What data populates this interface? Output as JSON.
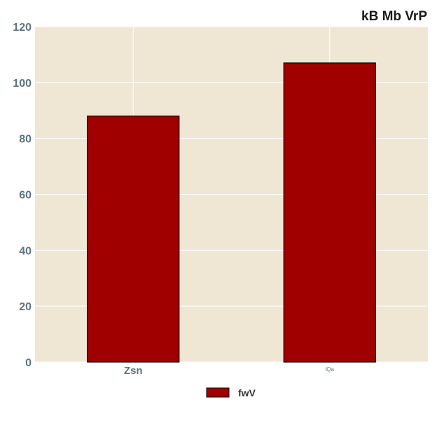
{
  "chart_data": {
    "type": "bar",
    "title": "kB Mb VrP",
    "categories": [
      "Zsn",
      "lQa"
    ],
    "series": [
      {
        "name": "fwV",
        "values": [
          88,
          107
        ]
      }
    ],
    "xlabel": "",
    "ylabel": "",
    "ylim": [
      0,
      120
    ],
    "yticks": [
      0,
      20,
      40,
      60,
      80,
      100,
      120
    ],
    "grid": true,
    "legend": "bottom-center",
    "colors": {
      "bar": "#a00000",
      "bar_edge": "#000000",
      "plot_bg": "#efe7d4",
      "grid": "#ffffff",
      "tick_text": "#5f7480"
    }
  }
}
